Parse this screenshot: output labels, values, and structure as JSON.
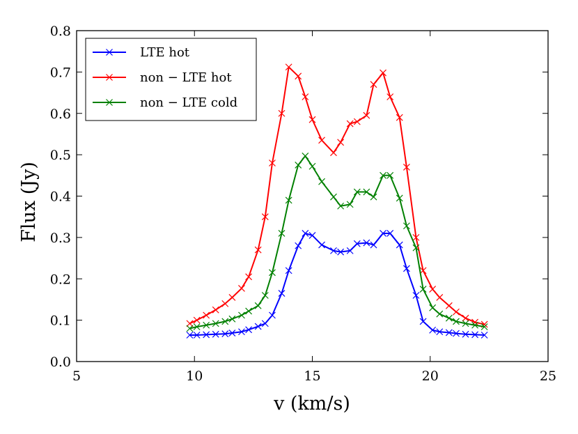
{
  "chart_data": {
    "type": "line",
    "title": "",
    "xlabel": "v (km/s)",
    "ylabel": "Flux (Jy)",
    "xlim": [
      5,
      25
    ],
    "ylim": [
      0.0,
      0.8
    ],
    "xticks": [
      "5",
      "10",
      "15",
      "20",
      "25"
    ],
    "yticks": [
      "0.0",
      "0.1",
      "0.2",
      "0.3",
      "0.4",
      "0.5",
      "0.6",
      "0.7",
      "0.8"
    ],
    "legend_position": "top-left",
    "marker": "x",
    "x": [
      9.8,
      10.1,
      10.5,
      10.9,
      11.3,
      11.6,
      12.0,
      12.3,
      12.7,
      13.0,
      13.3,
      13.7,
      14.0,
      14.4,
      14.7,
      15.0,
      15.4,
      15.9,
      16.2,
      16.6,
      16.9,
      17.3,
      17.6,
      18.0,
      18.3,
      18.7,
      19.0,
      19.4,
      19.7,
      20.1,
      20.4,
      20.8,
      21.1,
      21.5,
      21.9,
      22.3
    ],
    "series": [
      {
        "name": "LTE hot",
        "color": "#0000ff",
        "values": [
          0.064,
          0.064,
          0.065,
          0.066,
          0.067,
          0.069,
          0.072,
          0.077,
          0.085,
          0.092,
          0.112,
          0.165,
          0.22,
          0.28,
          0.31,
          0.305,
          0.282,
          0.268,
          0.265,
          0.268,
          0.285,
          0.287,
          0.282,
          0.31,
          0.31,
          0.282,
          0.225,
          0.16,
          0.097,
          0.076,
          0.072,
          0.07,
          0.068,
          0.066,
          0.065,
          0.064
        ]
      },
      {
        "name": "non − LTE hot",
        "color": "#ff0000",
        "values": [
          0.092,
          0.1,
          0.112,
          0.125,
          0.14,
          0.155,
          0.177,
          0.205,
          0.27,
          0.35,
          0.48,
          0.6,
          0.712,
          0.69,
          0.64,
          0.585,
          0.535,
          0.505,
          0.53,
          0.575,
          0.58,
          0.595,
          0.67,
          0.698,
          0.64,
          0.59,
          0.47,
          0.3,
          0.22,
          0.175,
          0.155,
          0.135,
          0.12,
          0.105,
          0.095,
          0.09
        ]
      },
      {
        "name": "non − LTE cold",
        "color": "#008000",
        "values": [
          0.08,
          0.084,
          0.088,
          0.092,
          0.097,
          0.103,
          0.112,
          0.122,
          0.135,
          0.16,
          0.215,
          0.31,
          0.39,
          0.475,
          0.497,
          0.472,
          0.435,
          0.398,
          0.376,
          0.38,
          0.41,
          0.41,
          0.398,
          0.45,
          0.45,
          0.395,
          0.328,
          0.275,
          0.175,
          0.13,
          0.115,
          0.105,
          0.097,
          0.092,
          0.088,
          0.084
        ]
      }
    ]
  }
}
